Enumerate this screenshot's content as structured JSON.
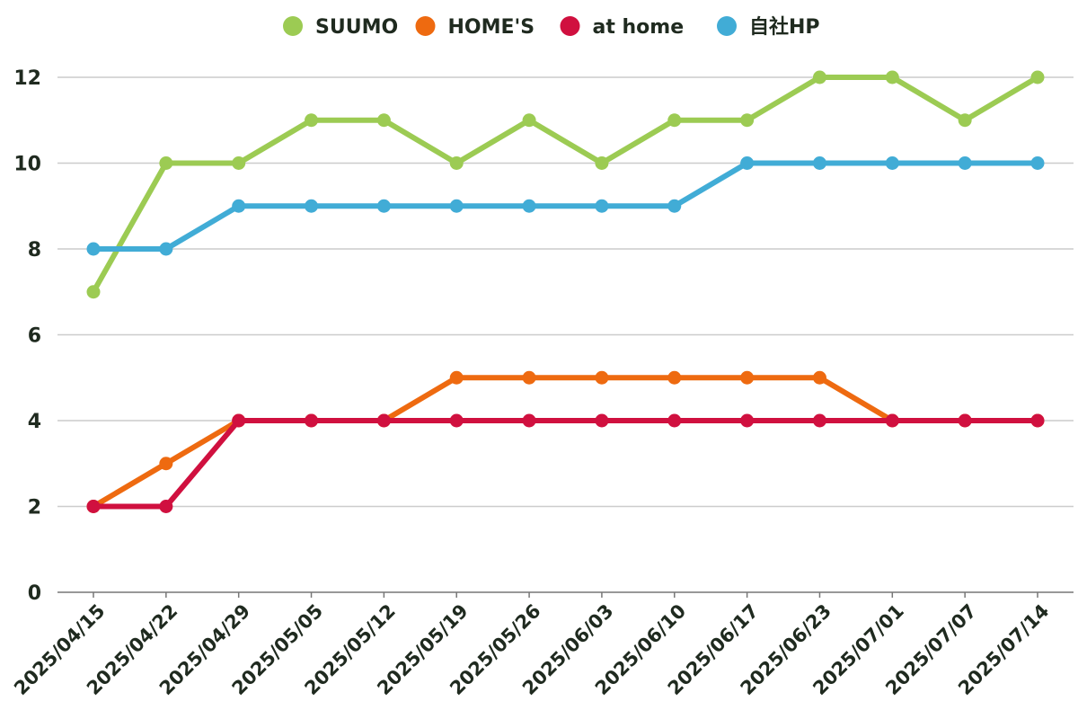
{
  "chart_data": {
    "type": "line",
    "title": "",
    "xlabel": "",
    "ylabel": "",
    "ylim": [
      0,
      12
    ],
    "yticks": [
      0,
      2,
      4,
      6,
      8,
      10,
      12
    ],
    "grid": true,
    "legend_position": "top",
    "categories": [
      "2025/04/15",
      "2025/04/22",
      "2025/04/29",
      "2025/05/05",
      "2025/05/12",
      "2025/05/19",
      "2025/05/26",
      "2025/06/03",
      "2025/06/10",
      "2025/06/17",
      "2025/06/23",
      "2025/07/01",
      "2025/07/07",
      "2025/07/14"
    ],
    "series": [
      {
        "name": "SUUMO",
        "color": "#9ccb53",
        "values": [
          7,
          10,
          10,
          11,
          11,
          10,
          11,
          10,
          11,
          11,
          12,
          12,
          11,
          12
        ]
      },
      {
        "name": "HOME'S",
        "color": "#ee6a10",
        "values": [
          2,
          3,
          4,
          4,
          4,
          5,
          5,
          5,
          5,
          5,
          5,
          4,
          4,
          4
        ]
      },
      {
        "name": "at home",
        "color": "#d0103f",
        "values": [
          2,
          2,
          4,
          4,
          4,
          4,
          4,
          4,
          4,
          4,
          4,
          4,
          4,
          4
        ]
      },
      {
        "name": "自社HP",
        "color": "#41acd6",
        "values": [
          8,
          8,
          9,
          9,
          9,
          9,
          9,
          9,
          9,
          10,
          10,
          10,
          10,
          10
        ]
      }
    ],
    "draw_order": [
      "HOME'S",
      "at home",
      "SUUMO",
      "自社HP"
    ]
  }
}
